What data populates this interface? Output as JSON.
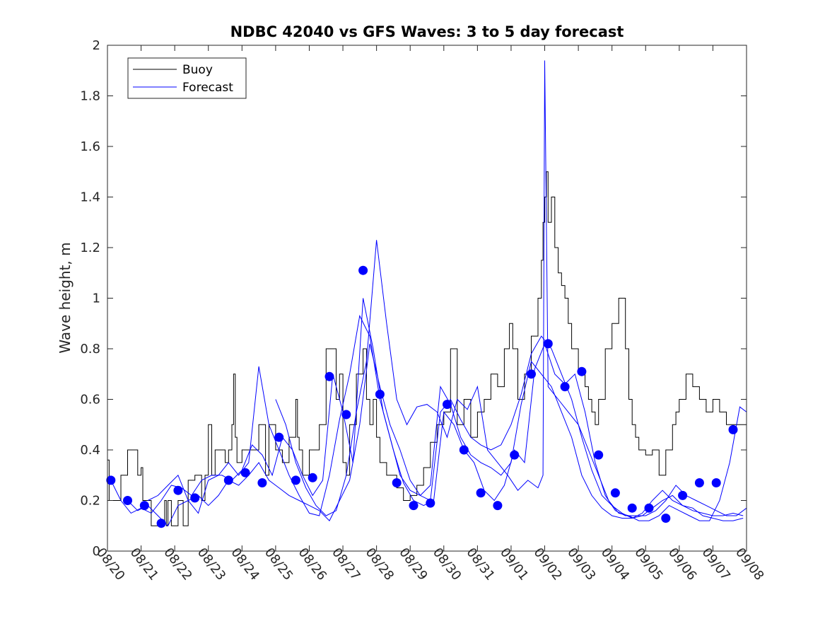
{
  "chart_data": {
    "type": "line",
    "title": "NDBC 42040 vs GFS Waves: 3 to 5 day forecast",
    "xlabel": "",
    "ylabel": "Wave height, m",
    "ylim": [
      0,
      2
    ],
    "xlim": [
      0,
      19
    ],
    "y_ticks": [
      0,
      0.2,
      0.4,
      0.6,
      0.8,
      1,
      1.2,
      1.4,
      1.6,
      1.8,
      2
    ],
    "y_tick_labels": [
      "0",
      "0.2",
      "0.4",
      "0.6",
      "0.8",
      "1",
      "1.2",
      "1.4",
      "1.6",
      "1.8",
      "2"
    ],
    "x_ticks": [
      0,
      1,
      2,
      3,
      4,
      5,
      6,
      7,
      8,
      9,
      10,
      11,
      12,
      13,
      14,
      15,
      16,
      17,
      18,
      19
    ],
    "x_tick_labels": [
      "08/20",
      "08/21",
      "08/22",
      "08/23",
      "08/24",
      "08/25",
      "08/26",
      "08/27",
      "08/28",
      "08/29",
      "08/30",
      "08/31",
      "09/01",
      "09/02",
      "09/03",
      "09/04",
      "09/05",
      "09/06",
      "09/07",
      "09/08"
    ],
    "legend": {
      "position": "top-left",
      "entries": [
        {
          "name": "Buoy",
          "color": "#000000"
        },
        {
          "name": "Forecast",
          "color": "#0000ff"
        }
      ]
    },
    "series": [
      {
        "name": "Buoy",
        "color": "#000000",
        "style": "step",
        "x": [
          0,
          0.05,
          0.4,
          0.6,
          0.9,
          1.0,
          1.05,
          1.3,
          1.7,
          1.75,
          1.8,
          1.9,
          2.1,
          2.25,
          2.4,
          2.6,
          2.8,
          2.9,
          3.0,
          3.1,
          3.2,
          3.5,
          3.6,
          3.7,
          3.75,
          3.8,
          3.85,
          4.0,
          4.5,
          4.7,
          4.8,
          5.0,
          5.2,
          5.4,
          5.6,
          5.65,
          5.7,
          5.8,
          6.0,
          6.3,
          6.5,
          6.8,
          6.9,
          7.0,
          7.1,
          7.2,
          7.4,
          7.6,
          7.7,
          7.8,
          7.9,
          8.0,
          8.1,
          8.3,
          8.6,
          8.8,
          9.0,
          9.2,
          9.4,
          9.6,
          9.8,
          10.0,
          10.2,
          10.4,
          10.5,
          10.6,
          10.8,
          11.0,
          11.2,
          11.4,
          11.6,
          11.8,
          11.95,
          12.05,
          12.2,
          12.4,
          12.6,
          12.8,
          12.9,
          12.95,
          13.0,
          13.05,
          13.1,
          13.2,
          13.3,
          13.4,
          13.5,
          13.6,
          13.7,
          13.8,
          14.0,
          14.2,
          14.3,
          14.4,
          14.5,
          14.6,
          14.8,
          15.0,
          15.2,
          15.4,
          15.5,
          15.6,
          15.7,
          15.8,
          16.0,
          16.2,
          16.4,
          16.6,
          16.8,
          16.9,
          17.0,
          17.2,
          17.4,
          17.6,
          17.8,
          18.0,
          18.2,
          18.4,
          18.6,
          18.8,
          19.0
        ],
        "y": [
          0.36,
          0.2,
          0.3,
          0.4,
          0.3,
          0.33,
          0.2,
          0.1,
          0.2,
          0.1,
          0.2,
          0.1,
          0.2,
          0.1,
          0.28,
          0.3,
          0.2,
          0.3,
          0.5,
          0.3,
          0.4,
          0.35,
          0.4,
          0.5,
          0.7,
          0.45,
          0.35,
          0.4,
          0.5,
          0.3,
          0.5,
          0.4,
          0.35,
          0.45,
          0.6,
          0.45,
          0.4,
          0.3,
          0.4,
          0.5,
          0.8,
          0.6,
          0.7,
          0.35,
          0.3,
          0.5,
          0.7,
          0.8,
          0.6,
          0.5,
          0.6,
          0.45,
          0.35,
          0.3,
          0.25,
          0.2,
          0.22,
          0.26,
          0.33,
          0.43,
          0.5,
          0.55,
          0.8,
          0.5,
          0.5,
          0.6,
          0.45,
          0.55,
          0.6,
          0.7,
          0.65,
          0.8,
          0.9,
          0.8,
          0.6,
          0.7,
          0.85,
          1.0,
          1.15,
          1.3,
          1.4,
          1.5,
          1.3,
          1.4,
          1.2,
          1.1,
          1.05,
          1.0,
          0.9,
          0.8,
          0.7,
          0.65,
          0.6,
          0.55,
          0.5,
          0.6,
          0.8,
          0.9,
          1.0,
          0.8,
          0.6,
          0.5,
          0.45,
          0.4,
          0.38,
          0.4,
          0.3,
          0.4,
          0.5,
          0.55,
          0.6,
          0.7,
          0.65,
          0.6,
          0.55,
          0.6,
          0.55,
          0.5,
          0.5,
          0.5,
          0.5
        ]
      },
      {
        "name": "Forecast",
        "color": "#0000ff",
        "style": "line",
        "x": [
          0.1,
          0.4,
          0.7,
          1.0,
          1.3,
          1.6,
          1.9,
          2.2,
          2.5,
          2.8,
          3.1,
          3.4,
          3.7,
          4.0,
          4.3,
          4.6,
          4.9,
          5.2,
          5.5,
          5.8,
          6.1,
          6.4,
          6.7,
          7.0,
          7.3,
          7.6,
          7.9,
          8.2,
          8.5,
          8.8,
          9.1,
          9.4,
          9.7,
          10.0,
          10.3,
          10.6,
          10.9,
          11.2,
          11.5,
          11.8,
          12.1,
          12.4,
          12.7,
          13.0,
          13.3,
          13.6,
          13.9,
          14.2,
          14.5,
          14.8,
          15.1,
          15.4,
          15.7,
          16.0,
          16.3,
          16.6,
          16.9,
          17.2,
          17.5,
          17.8,
          18.1,
          18.4,
          18.7,
          19.0
        ],
        "y": [
          0.28,
          0.2,
          0.15,
          0.17,
          0.15,
          0.2,
          0.26,
          0.25,
          0.22,
          0.28,
          0.3,
          0.3,
          0.28,
          0.32,
          0.42,
          0.38,
          0.3,
          0.45,
          0.4,
          0.3,
          0.22,
          0.28,
          0.7,
          0.55,
          0.35,
          1.0,
          0.8,
          0.55,
          0.4,
          0.27,
          0.2,
          0.18,
          0.2,
          0.55,
          0.5,
          0.4,
          0.35,
          0.24,
          0.2,
          0.26,
          0.4,
          0.35,
          0.72,
          0.82,
          0.7,
          0.66,
          0.7,
          0.55,
          0.35,
          0.22,
          0.16,
          0.14,
          0.14,
          0.14,
          0.16,
          0.2,
          0.26,
          0.22,
          0.2,
          0.18,
          0.16,
          0.14,
          0.14,
          0.17
        ]
      },
      {
        "name": "Forecast",
        "color": "#0000ff",
        "style": "line",
        "x": [
          0.6,
          0.9,
          1.2,
          1.5,
          1.8,
          2.1,
          2.4,
          2.7,
          3.0,
          3.3,
          3.6,
          3.9,
          4.2,
          4.5,
          4.8,
          5.1,
          5.4,
          5.7,
          6.0,
          6.3,
          6.6,
          6.9,
          7.2,
          7.5,
          7.8,
          8.1,
          8.4,
          8.7,
          9.0,
          9.3,
          9.6,
          9.9,
          10.2,
          10.5,
          10.8,
          11.1,
          11.4,
          11.7,
          12.0,
          12.3,
          12.6,
          12.9,
          13.2,
          13.5,
          13.8,
          14.1,
          14.4,
          14.7,
          15.0,
          15.3,
          15.6,
          15.9,
          16.2,
          16.5,
          16.8,
          17.1,
          17.4,
          17.7,
          18.0,
          18.3,
          18.6,
          18.9
        ],
        "y": [
          0.2,
          0.16,
          0.18,
          0.14,
          0.1,
          0.18,
          0.2,
          0.22,
          0.18,
          0.22,
          0.28,
          0.26,
          0.3,
          0.35,
          0.28,
          0.25,
          0.22,
          0.2,
          0.18,
          0.16,
          0.12,
          0.2,
          0.28,
          0.5,
          0.82,
          0.65,
          0.5,
          0.4,
          0.28,
          0.22,
          0.2,
          0.55,
          0.6,
          0.52,
          0.45,
          0.42,
          0.4,
          0.42,
          0.5,
          0.62,
          0.78,
          0.85,
          0.8,
          0.7,
          0.6,
          0.45,
          0.32,
          0.22,
          0.18,
          0.15,
          0.13,
          0.14,
          0.17,
          0.2,
          0.22,
          0.18,
          0.16,
          0.15,
          0.14,
          0.14,
          0.15,
          0.14
        ]
      },
      {
        "name": "Forecast",
        "color": "#0000ff",
        "style": "line",
        "x": [
          1.2,
          1.5,
          1.8,
          2.1,
          2.4,
          2.7,
          3.0,
          3.3,
          3.6,
          3.9,
          4.2,
          4.5,
          4.8,
          5.1,
          5.4,
          5.7,
          6.0,
          6.3,
          6.6,
          6.9,
          7.2,
          7.5,
          7.8,
          8.1,
          8.4,
          8.7,
          9.0,
          9.3,
          9.6,
          9.9,
          10.2,
          10.5,
          10.8,
          11.1,
          11.4,
          11.7,
          12.0,
          12.3,
          12.6,
          12.9,
          13.2,
          13.5,
          13.8,
          14.1,
          14.4,
          14.7,
          15.0,
          15.3,
          15.6,
          15.9,
          16.2,
          16.5,
          16.8,
          17.1,
          17.4,
          17.7,
          18.0,
          18.3,
          18.6,
          18.9
        ],
        "y": [
          0.2,
          0.22,
          0.26,
          0.3,
          0.2,
          0.15,
          0.28,
          0.3,
          0.35,
          0.3,
          0.35,
          0.73,
          0.5,
          0.4,
          0.3,
          0.22,
          0.15,
          0.14,
          0.3,
          0.52,
          0.7,
          0.93,
          0.85,
          0.6,
          0.45,
          0.3,
          0.24,
          0.22,
          0.26,
          0.65,
          0.58,
          0.45,
          0.38,
          0.35,
          0.33,
          0.3,
          0.35,
          0.58,
          0.75,
          0.7,
          0.65,
          0.55,
          0.45,
          0.3,
          0.22,
          0.17,
          0.14,
          0.13,
          0.13,
          0.15,
          0.2,
          0.24,
          0.2,
          0.18,
          0.17,
          0.14,
          0.13,
          0.12,
          0.12,
          0.13
        ]
      },
      {
        "name": "Forecast",
        "color": "#0000ff",
        "style": "line",
        "x": [
          5.0,
          5.3,
          5.6,
          5.9,
          6.2,
          6.5,
          6.8,
          7.1,
          7.4,
          7.7,
          8.0,
          8.3,
          8.6,
          8.9,
          9.2,
          9.5,
          9.8,
          10.1,
          10.4,
          10.7,
          11.0,
          11.3,
          11.6,
          11.9,
          12.2,
          12.5,
          12.8,
          12.95,
          13.0,
          13.1,
          13.4,
          13.7,
          14.0,
          14.3,
          14.6,
          14.9,
          15.2,
          15.5,
          15.8,
          16.1,
          16.4,
          16.7,
          17.0,
          17.3,
          17.6,
          17.9,
          18.2,
          18.5,
          18.8,
          19.0
        ],
        "y": [
          0.6,
          0.5,
          0.35,
          0.25,
          0.18,
          0.14,
          0.16,
          0.3,
          0.55,
          0.75,
          1.23,
          0.9,
          0.6,
          0.5,
          0.57,
          0.58,
          0.55,
          0.45,
          0.6,
          0.56,
          0.65,
          0.4,
          0.35,
          0.3,
          0.24,
          0.28,
          0.25,
          0.3,
          1.94,
          0.65,
          0.6,
          0.55,
          0.5,
          0.4,
          0.3,
          0.2,
          0.15,
          0.14,
          0.12,
          0.12,
          0.14,
          0.18,
          0.16,
          0.14,
          0.12,
          0.12,
          0.2,
          0.35,
          0.57,
          0.55
        ]
      }
    ],
    "markers": {
      "name": "Forecast",
      "color": "#0000ff",
      "x": [
        0.1,
        0.6,
        1.1,
        1.6,
        2.1,
        2.6,
        3.6,
        4.1,
        4.6,
        5.1,
        5.6,
        6.1,
        6.6,
        7.1,
        7.6,
        8.1,
        8.6,
        9.1,
        9.6,
        10.1,
        10.6,
        11.1,
        11.6,
        12.1,
        12.6,
        13.1,
        13.6,
        14.1,
        14.6,
        15.1,
        15.6,
        16.1,
        16.6,
        17.1,
        17.6,
        18.1,
        18.6
      ],
      "y": [
        0.28,
        0.2,
        0.18,
        0.11,
        0.24,
        0.21,
        0.28,
        0.31,
        0.27,
        0.45,
        0.28,
        0.29,
        0.69,
        0.54,
        1.11,
        0.62,
        0.27,
        0.18,
        0.19,
        0.58,
        0.4,
        0.23,
        0.18,
        0.38,
        0.7,
        0.82,
        0.65,
        0.71,
        0.38,
        0.23,
        0.17,
        0.17,
        0.13,
        0.22,
        0.27,
        0.27,
        0.48
      ]
    }
  }
}
